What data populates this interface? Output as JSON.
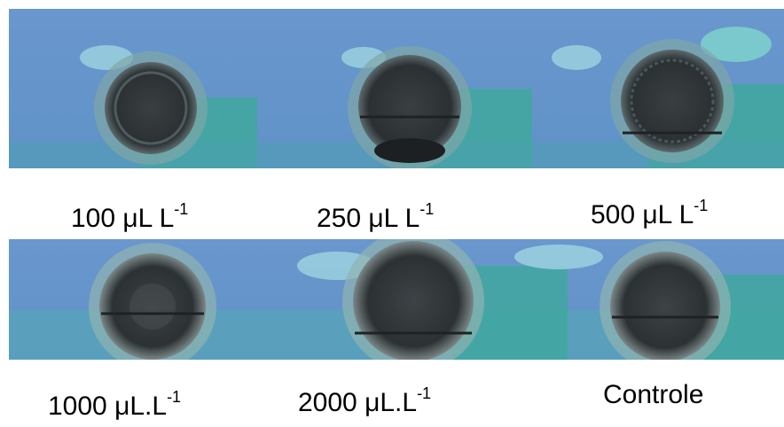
{
  "captions": {
    "c100": {
      "number": "100 μL L",
      "sup": "-1"
    },
    "c250": {
      "number": "250 μL L",
      "sup": "-1"
    },
    "c500": {
      "number": "500 μL L",
      "sup": "-1"
    },
    "c1000": {
      "number": "1000 μL.L",
      "sup": "-1"
    },
    "c2000": {
      "number": "2000 μL.L",
      "sup": "-1"
    },
    "control": {
      "number": "Controle"
    }
  },
  "colors": {
    "background_blue": "#6a97cd",
    "teal_patch": "#3fa89e",
    "dish_dark": "#2e3336",
    "dish_rim": "#8fb4b0"
  }
}
